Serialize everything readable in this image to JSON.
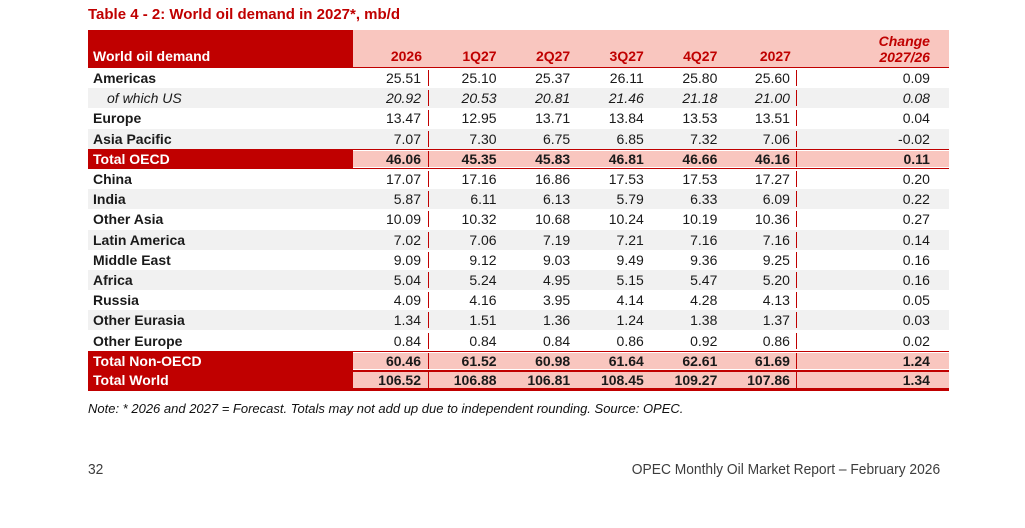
{
  "title": "Table 4 - 2: World oil demand in 2027*, mb/d",
  "table": {
    "header": {
      "label": "World oil demand",
      "columns": [
        "2026",
        "1Q27",
        "2Q27",
        "3Q27",
        "4Q27",
        "2027"
      ],
      "change": [
        "Change",
        "2027/26"
      ]
    },
    "rows": [
      {
        "label": "Americas",
        "style": "normal",
        "bg": "white",
        "values": [
          "25.51",
          "25.10",
          "25.37",
          "26.11",
          "25.80",
          "25.60"
        ],
        "change": "0.09"
      },
      {
        "label": "of which US",
        "style": "italic",
        "bg": "gray",
        "values": [
          "20.92",
          "20.53",
          "20.81",
          "21.46",
          "21.18",
          "21.00"
        ],
        "change": "0.08"
      },
      {
        "label": "Europe",
        "style": "normal",
        "bg": "white",
        "values": [
          "13.47",
          "12.95",
          "13.71",
          "13.84",
          "13.53",
          "13.51"
        ],
        "change": "0.04"
      },
      {
        "label": "Asia Pacific",
        "style": "normal",
        "bg": "gray",
        "values": [
          "7.07",
          "7.30",
          "6.75",
          "6.85",
          "7.32",
          "7.06"
        ],
        "change": "-0.02"
      },
      {
        "label": "Total OECD",
        "style": "total",
        "bg": "total",
        "values": [
          "46.06",
          "45.35",
          "45.83",
          "46.81",
          "46.66",
          "46.16"
        ],
        "change": "0.11"
      },
      {
        "label": "China",
        "style": "normal",
        "bg": "white",
        "values": [
          "17.07",
          "17.16",
          "16.86",
          "17.53",
          "17.53",
          "17.27"
        ],
        "change": "0.20"
      },
      {
        "label": "India",
        "style": "normal",
        "bg": "gray",
        "values": [
          "5.87",
          "6.11",
          "6.13",
          "5.79",
          "6.33",
          "6.09"
        ],
        "change": "0.22"
      },
      {
        "label": "Other Asia",
        "style": "normal",
        "bg": "white",
        "values": [
          "10.09",
          "10.32",
          "10.68",
          "10.24",
          "10.19",
          "10.36"
        ],
        "change": "0.27"
      },
      {
        "label": "Latin America",
        "style": "normal",
        "bg": "gray",
        "values": [
          "7.02",
          "7.06",
          "7.19",
          "7.21",
          "7.16",
          "7.16"
        ],
        "change": "0.14"
      },
      {
        "label": "Middle East",
        "style": "normal",
        "bg": "white",
        "values": [
          "9.09",
          "9.12",
          "9.03",
          "9.49",
          "9.36",
          "9.25"
        ],
        "change": "0.16"
      },
      {
        "label": "Africa",
        "style": "normal",
        "bg": "gray",
        "values": [
          "5.04",
          "5.24",
          "4.95",
          "5.15",
          "5.47",
          "5.20"
        ],
        "change": "0.16"
      },
      {
        "label": "Russia",
        "style": "normal",
        "bg": "white",
        "values": [
          "4.09",
          "4.16",
          "3.95",
          "4.14",
          "4.28",
          "4.13"
        ],
        "change": "0.05"
      },
      {
        "label": "Other Eurasia",
        "style": "normal",
        "bg": "gray",
        "values": [
          "1.34",
          "1.51",
          "1.36",
          "1.24",
          "1.38",
          "1.37"
        ],
        "change": "0.03"
      },
      {
        "label": "Other Europe",
        "style": "normal",
        "bg": "white",
        "values": [
          "0.84",
          "0.84",
          "0.84",
          "0.86",
          "0.92",
          "0.86"
        ],
        "change": "0.02"
      },
      {
        "label": "Total Non-OECD",
        "style": "total",
        "bg": "total",
        "values": [
          "60.46",
          "61.52",
          "60.98",
          "61.64",
          "62.61",
          "61.69"
        ],
        "change": "1.24"
      },
      {
        "label": "Total World",
        "style": "total",
        "bg": "total",
        "values": [
          "106.52",
          "106.88",
          "106.81",
          "108.45",
          "109.27",
          "107.86"
        ],
        "change": "1.34"
      }
    ]
  },
  "note": "Note: * 2026 and 2027 = Forecast. Totals may not add up due to independent rounding. Source: OPEC.",
  "footer": {
    "page_number": "32",
    "report_title": "OPEC Monthly Oil Market Report – February 2026"
  },
  "colors": {
    "dark_red": "#C00000",
    "pink": "#F9C6BF",
    "stripe_gray": "#F1F1F1"
  }
}
